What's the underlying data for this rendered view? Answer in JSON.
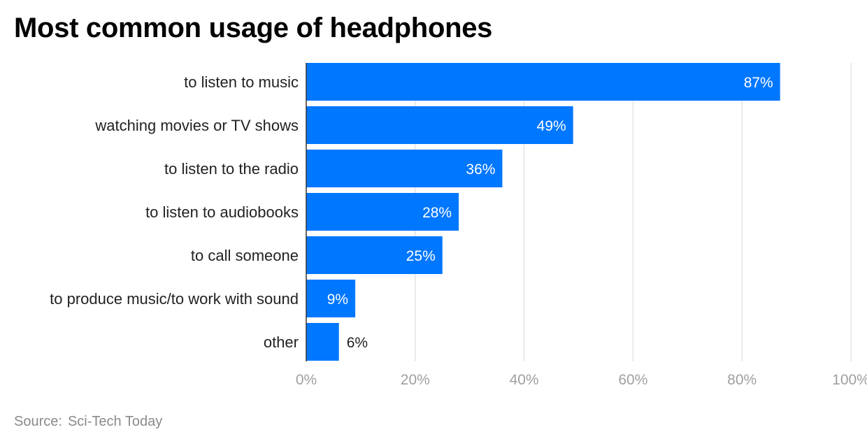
{
  "colors": {
    "bar": "#0077ff",
    "inside_label": "#ffffff",
    "outside_label": "#222222",
    "category_label": "#222222",
    "tick_label": "#a0a0a0",
    "grid": "#e3e3e3",
    "axis": "#333333"
  },
  "chart_data": {
    "type": "bar",
    "orientation": "horizontal",
    "title": "Most common usage of headphones",
    "categories": [
      "to listen to music",
      "watching movies or TV shows",
      "to listen to the radio",
      "to listen to audiobooks",
      "to call someone",
      "to produce music/to work with sound",
      "other"
    ],
    "values": [
      87,
      49,
      36,
      28,
      25,
      9,
      6
    ],
    "value_labels": [
      "87%",
      "49%",
      "36%",
      "28%",
      "25%",
      "9%",
      "6%"
    ],
    "xlim": [
      0,
      100
    ],
    "xticks": [
      0,
      20,
      40,
      60,
      80,
      100
    ],
    "xtick_labels": [
      "0%",
      "20%",
      "40%",
      "60%",
      "80%",
      "100%"
    ],
    "grid": true,
    "legend": "none",
    "xlabel": "",
    "ylabel": ""
  },
  "source": {
    "label": "Source:",
    "name": "Sci-Tech Today"
  }
}
